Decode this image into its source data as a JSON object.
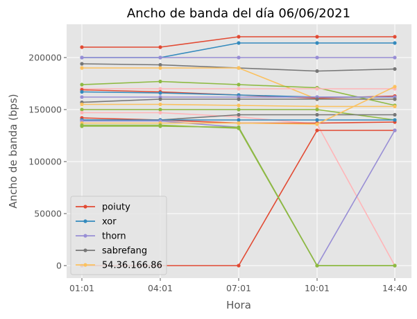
{
  "chart_data": {
    "type": "line",
    "title": "Ancho de banda del día 06/06/2021",
    "xlabel": "Hora",
    "ylabel": "Ancho de banda (bps)",
    "categories": [
      "01:01",
      "04:01",
      "07:01",
      "10:01",
      "14:40"
    ],
    "ylim": [
      -12000,
      232000
    ],
    "yticks": [
      0,
      50000,
      100000,
      150000,
      200000
    ],
    "ytick_labels": [
      "0",
      "50000",
      "100000",
      "150000",
      "200000"
    ],
    "grid": true,
    "legend_position": "lower-left",
    "series": [
      {
        "name": "poiuty",
        "color": "#E24A33",
        "values": [
          210000,
          210000,
          220000,
          220000,
          220000
        ]
      },
      {
        "name": "xor",
        "color": "#348ABD",
        "values": [
          200000,
          200000,
          214000,
          214000,
          214000
        ]
      },
      {
        "name": "thorn",
        "color": "#988ED5",
        "values": [
          200000,
          200000,
          200000,
          200000,
          200000
        ]
      },
      {
        "name": "sabrefang",
        "color": "#777777",
        "values": [
          194000,
          193000,
          190000,
          187000,
          189000
        ]
      },
      {
        "name": "54.36.166.86",
        "color": "#FBC15E",
        "values": [
          190000,
          190000,
          190000,
          160000,
          160000
        ]
      },
      {
        "color": "#8EBA42",
        "values": [
          174000,
          177000,
          174000,
          171000,
          154000
        ]
      },
      {
        "color": "#FFB5B8",
        "values": [
          170000,
          170000,
          170000,
          170000,
          170000
        ]
      },
      {
        "color": "#E24A33",
        "values": [
          169000,
          167000,
          164000,
          161000,
          163000
        ]
      },
      {
        "color": "#348ABD",
        "values": [
          167000,
          166000,
          164000,
          162000,
          162000
        ]
      },
      {
        "color": "#988ED5",
        "values": [
          162000,
          162000,
          162000,
          162000,
          162000
        ]
      },
      {
        "color": "#777777",
        "values": [
          157000,
          160000,
          160000,
          160000,
          160000
        ]
      },
      {
        "color": "#FBC15E",
        "values": [
          155000,
          155000,
          154000,
          153000,
          153000
        ]
      },
      {
        "color": "#8EBA42",
        "values": [
          150000,
          150000,
          150000,
          150000,
          140000
        ]
      },
      {
        "color": "#FFB5B8",
        "values": [
          147000,
          147000,
          143000,
          136000,
          0
        ]
      },
      {
        "color": "#777777",
        "values": [
          140000,
          140000,
          145000,
          145000,
          145000
        ]
      },
      {
        "color": "#E24A33",
        "values": [
          0,
          0,
          0,
          130000,
          130000
        ]
      },
      {
        "color": "#E24A33",
        "values": [
          142000,
          140000,
          137000,
          137000,
          138000
        ]
      },
      {
        "color": "#348ABD",
        "values": [
          140000,
          140000,
          140000,
          140000,
          140000
        ]
      },
      {
        "color": "#988ED5",
        "values": [
          139000,
          139000,
          133000,
          0,
          130000
        ]
      },
      {
        "color": "#FBC15E",
        "values": [
          137000,
          137000,
          137000,
          136000,
          172000
        ]
      },
      {
        "color": "#8EBA42",
        "values": [
          135000,
          135000,
          132000,
          0,
          0
        ]
      },
      {
        "color": "#8EBA42",
        "values": [
          134000,
          134000,
          133000,
          0,
          0
        ]
      }
    ],
    "legend": [
      "poiuty",
      "xor",
      "thorn",
      "sabrefang",
      "54.36.166.86"
    ]
  }
}
